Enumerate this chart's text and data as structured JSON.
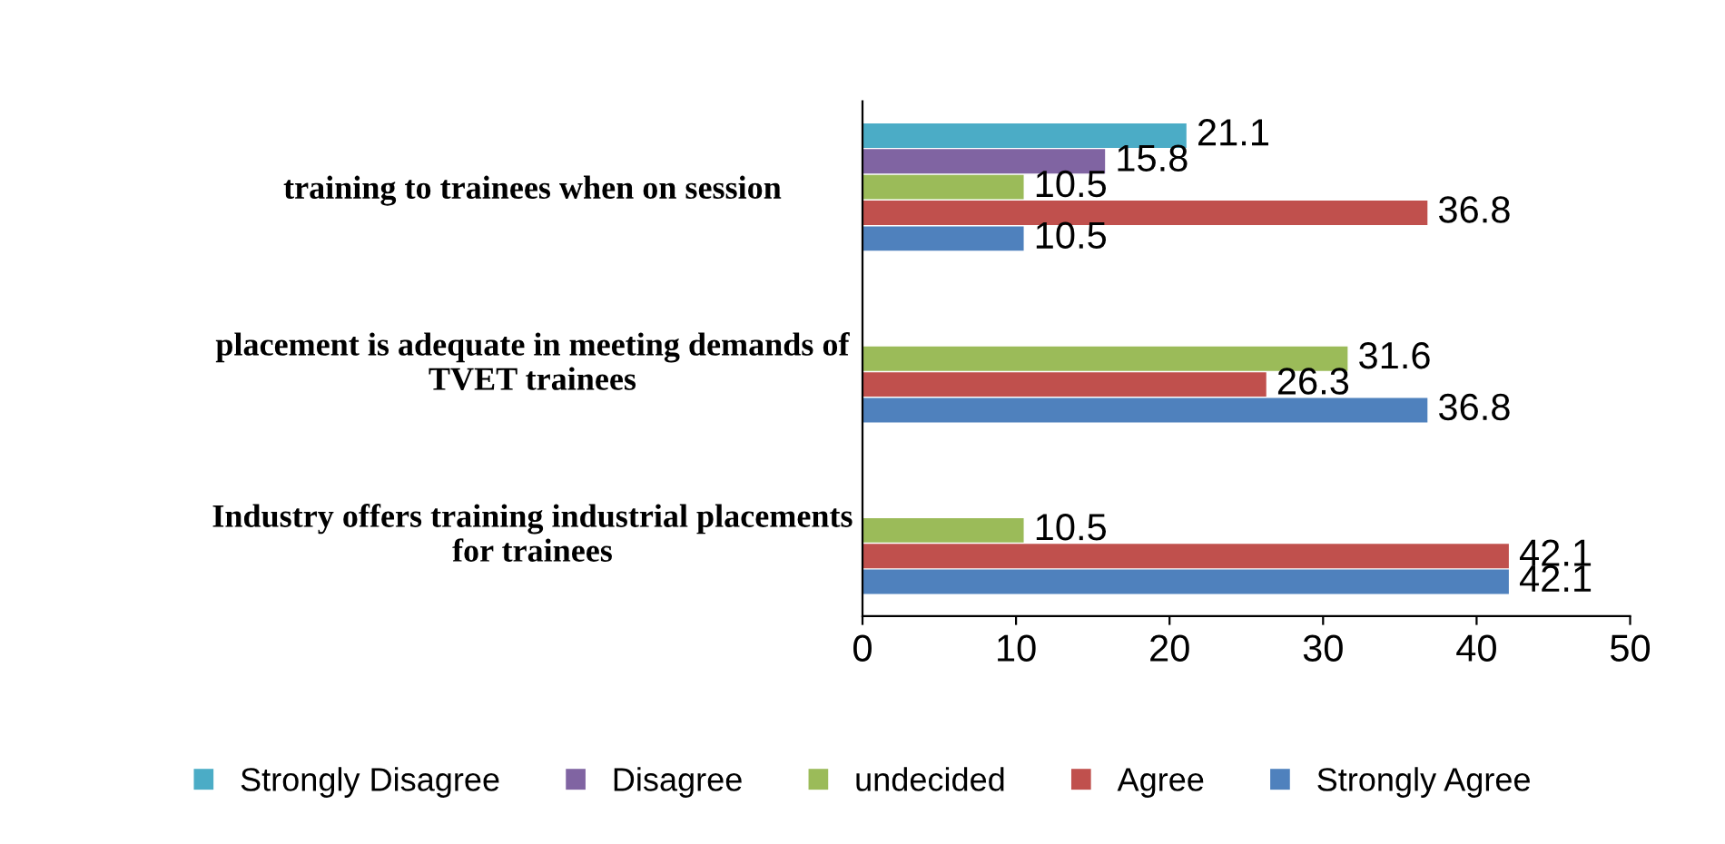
{
  "chart_data": {
    "type": "bar",
    "orientation": "horizontal",
    "categories": [
      "training to trainees when on session",
      "placement is adequate in meeting demands of\nTVET trainees",
      "Industry offers training industrial placements\nfor trainees"
    ],
    "series": [
      {
        "name": "Strongly Agree",
        "color": "#4f81bd",
        "values": [
          10.5,
          36.8,
          42.1
        ]
      },
      {
        "name": "Agree",
        "color": "#c0504d",
        "values": [
          36.8,
          26.3,
          42.1
        ]
      },
      {
        "name": "undecided",
        "color": "#9bbb59",
        "values": [
          10.5,
          31.6,
          10.5
        ]
      },
      {
        "name": "Disagree",
        "color": "#8064a2",
        "values": [
          15.8,
          null,
          null
        ]
      },
      {
        "name": "Strongly Disagree",
        "color": "#4bacc6",
        "values": [
          21.1,
          null,
          null
        ]
      }
    ],
    "xlim": [
      0,
      50
    ],
    "xticks": [
      0,
      10,
      20,
      30,
      40,
      50
    ],
    "grid": false,
    "legend": "bottom",
    "data_labels": true
  }
}
